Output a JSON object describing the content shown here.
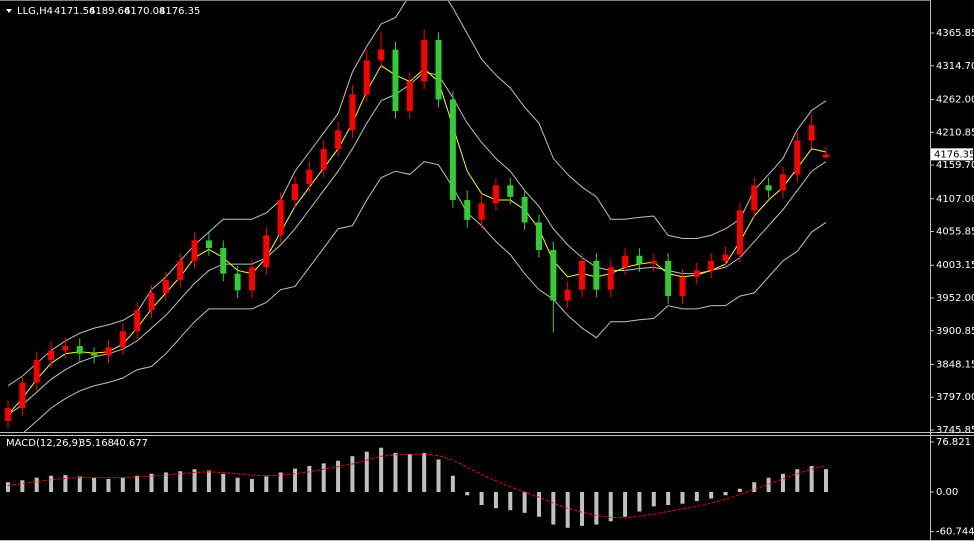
{
  "chart_data": [
    {
      "type": "candlestick",
      "symbol": "LLG,H4",
      "candles": {
        "open": [
          3760,
          3780,
          3820,
          3855,
          3870,
          3877,
          3865,
          3862,
          3875,
          3900,
          3933,
          3960,
          3980,
          4010,
          4042,
          4030,
          3990,
          3964,
          4000,
          4050,
          4105,
          4130,
          4152,
          4185,
          4214,
          4270,
          4323,
          4340,
          4244,
          4290,
          4355,
          4262,
          4105,
          4074,
          4100,
          4128,
          4110,
          4070,
          4027,
          3948,
          3965,
          4010,
          3965,
          4000,
          4018,
          4005,
          4010,
          3955,
          3985,
          3995,
          4010,
          4020,
          4089,
          4128,
          4120,
          4145,
          4198,
          4171.56
        ],
        "high": [
          3792,
          3832,
          3868,
          3885,
          3890,
          3889,
          3875,
          3887,
          3912,
          3945,
          3972,
          3993,
          4022,
          4055,
          4054,
          4042,
          4002,
          4012,
          4062,
          4117,
          4142,
          4165,
          4198,
          4228,
          4285,
          4340,
          4368,
          4352,
          4305,
          4372,
          4367,
          4275,
          4120,
          4112,
          4140,
          4140,
          4122,
          4082,
          4040,
          3978,
          4022,
          4022,
          4012,
          4030,
          4030,
          4022,
          4022,
          3997,
          4007,
          4022,
          4032,
          4101,
          4140,
          4140,
          4157,
          4210,
          4240,
          4189.66
        ],
        "low": [
          3748,
          3768,
          3808,
          3843,
          3858,
          3853,
          3850,
          3850,
          3863,
          3888,
          3921,
          3948,
          3968,
          3998,
          4018,
          3978,
          3952,
          3952,
          3988,
          4038,
          4093,
          4118,
          4140,
          4173,
          4202,
          4258,
          4311,
          4232,
          4232,
          4278,
          4250,
          4093,
          4062,
          4062,
          4088,
          4098,
          4058,
          4015,
          3898,
          3936,
          3953,
          3953,
          3953,
          3988,
          3993,
          3993,
          3943,
          3943,
          3973,
          3983,
          3998,
          4008,
          4077,
          4108,
          4108,
          4133,
          4186,
          4170.08
        ],
        "close": [
          3780,
          3820,
          3855,
          3870,
          3877,
          3865,
          3862,
          3875,
          3900,
          3933,
          3960,
          3980,
          4010,
          4042,
          4030,
          3990,
          3964,
          4000,
          4050,
          4105,
          4130,
          4152,
          4185,
          4214,
          4270,
          4323,
          4340,
          4244,
          4290,
          4355,
          4262,
          4105,
          4074,
          4100,
          4128,
          4110,
          4070,
          4027,
          3948,
          3965,
          4010,
          3965,
          4000,
          4018,
          4005,
          4010,
          3955,
          3985,
          3995,
          4010,
          4020,
          4089,
          4128,
          4120,
          4145,
          4198,
          4222,
          4176.35
        ]
      },
      "up_color": "#ff0000",
      "down_color": "#32cd32",
      "series": [
        {
          "color": "#c0c0c0",
          "values": [
            3815,
            3830,
            3850,
            3870,
            3885,
            3897,
            3905,
            3910,
            3917,
            3930,
            3965,
            3985,
            4010,
            4035,
            4055,
            4075,
            4075,
            4075,
            4085,
            4105,
            4150,
            4180,
            4210,
            4240,
            4305,
            4345,
            4380,
            4390,
            4425,
            4445,
            4440,
            4405,
            4365,
            4325,
            4300,
            4280,
            4250,
            4225,
            4170,
            4145,
            4125,
            4110,
            4075,
            4075,
            4078,
            4080,
            4050,
            4045,
            4045,
            4050,
            4060,
            4075,
            4120,
            4145,
            4170,
            4215,
            4245,
            4260
          ]
        },
        {
          "color": "#c0c0c0",
          "values": [
            3770,
            3785,
            3805,
            3825,
            3840,
            3852,
            3860,
            3865,
            3872,
            3885,
            3905,
            3925,
            3950,
            3975,
            3995,
            4005,
            4005,
            4005,
            4015,
            4035,
            4060,
            4090,
            4120,
            4150,
            4185,
            4225,
            4260,
            4270,
            4285,
            4305,
            4300,
            4265,
            4225,
            4195,
            4170,
            4150,
            4120,
            4095,
            4060,
            4035,
            4015,
            4000,
            3995,
            3995,
            3998,
            4000,
            3995,
            3990,
            3990,
            3995,
            4000,
            4015,
            4040,
            4065,
            4090,
            4120,
            4150,
            4165
          ]
        },
        {
          "color": "#c0c0c0",
          "values": [
            3725,
            3740,
            3760,
            3780,
            3795,
            3807,
            3815,
            3820,
            3827,
            3840,
            3845,
            3865,
            3890,
            3915,
            3935,
            3935,
            3935,
            3935,
            3945,
            3965,
            3970,
            4000,
            4030,
            4060,
            4065,
            4105,
            4140,
            4150,
            4145,
            4165,
            4160,
            4125,
            4085,
            4065,
            4040,
            4020,
            3990,
            3965,
            3950,
            3925,
            3905,
            3890,
            3915,
            3915,
            3918,
            3920,
            3940,
            3935,
            3935,
            3940,
            3940,
            3955,
            3960,
            3985,
            4010,
            4025,
            4055,
            4070
          ]
        },
        {
          "color": "#ffff00",
          "values": [
            3770,
            3795,
            3825,
            3850,
            3865,
            3868,
            3866,
            3868,
            3880,
            3905,
            3935,
            3960,
            3985,
            4015,
            4028,
            4015,
            3995,
            3990,
            4015,
            4055,
            4095,
            4125,
            4155,
            4185,
            4225,
            4275,
            4315,
            4300,
            4290,
            4310,
            4290,
            4220,
            4150,
            4115,
            4105,
            4105,
            4090,
            4060,
            4010,
            3985,
            3990,
            3985,
            3990,
            4000,
            4005,
            4008,
            3990,
            3985,
            3988,
            3995,
            4005,
            4040,
            4080,
            4105,
            4125,
            4155,
            4185,
            4180
          ]
        }
      ],
      "ylim": [
        3745.85,
        4417.4
      ],
      "yticks": [
        4365.85,
        {
          "value": 4314.7,
          "label": "4314.70"
        },
        {
          "value": 4262,
          "label": "4262.00"
        },
        4210.85,
        {
          "value": 4159.7,
          "label": "4159.70"
        },
        {
          "value": 4107,
          "label": "4107.00"
        },
        4055.85,
        4003.15,
        {
          "value": 3952,
          "label": "3952.00"
        },
        3900.85,
        3848.15,
        {
          "value": 3797,
          "label": "3797.00"
        },
        3745.85
      ]
    },
    {
      "type": "macd",
      "label": "MACD(12,26,9)",
      "series": [
        {
          "color": "#c0c0c0",
          "values": [
            15,
            18,
            22,
            25,
            26,
            24,
            22,
            20,
            22,
            25,
            28,
            30,
            32,
            35,
            33,
            28,
            22,
            20,
            24,
            30,
            36,
            40,
            44,
            48,
            55,
            62,
            68,
            60,
            58,
            60,
            50,
            25,
            -5,
            -20,
            -25,
            -28,
            -32,
            -38,
            -50,
            -55,
            -52,
            -50,
            -45,
            -38,
            -30,
            -22,
            -20,
            -18,
            -14,
            -10,
            -5,
            5,
            15,
            22,
            28,
            35,
            40,
            35.168
          ]
        },
        {
          "color": "#ff0000",
          "values": [
            10,
            13,
            16,
            19,
            21,
            22,
            22,
            22,
            22,
            23,
            24,
            26,
            28,
            30,
            31,
            30,
            28,
            26,
            25,
            26,
            28,
            31,
            35,
            39,
            43,
            49,
            55,
            57,
            58,
            58,
            56,
            49,
            38,
            27,
            17,
            8,
            0,
            -8,
            -17,
            -25,
            -31,
            -36,
            -39,
            -40,
            -37,
            -34,
            -30,
            -26,
            -22,
            -17,
            -11,
            -4,
            4,
            12,
            20,
            28,
            35,
            40.677
          ]
        }
      ],
      "ylim": [
        -73.7,
        86
      ],
      "yticks": [
        76.821,
        {
          "value": 0,
          "label": "0.00"
        },
        -60.744
      ]
    }
  ]
}
